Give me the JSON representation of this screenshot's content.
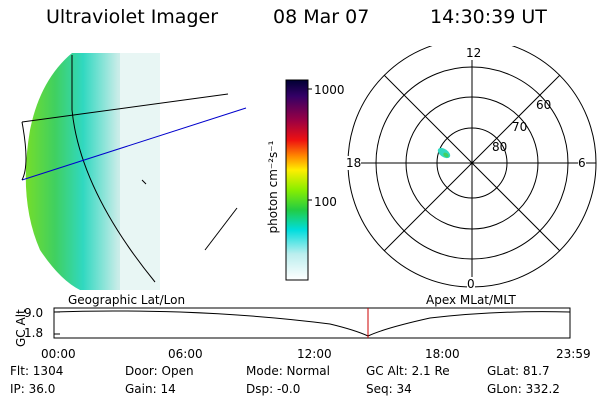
{
  "header": {
    "instrument": "Ultraviolet Imager",
    "date": "08 Mar 07",
    "time": "14:30:39 UT"
  },
  "colorbar": {
    "unit_label": "photon cm⁻²s⁻¹",
    "ticks": [
      "1000",
      "100"
    ]
  },
  "polar_plot": {
    "mlt_labels": {
      "top": "12",
      "right": "6",
      "bottom": "0",
      "left": "18"
    },
    "lat_labels": [
      "60",
      "70",
      "80"
    ]
  },
  "panel_labels": {
    "left": "Geographic Lat/Lon",
    "right": "Apex MLat/MLT"
  },
  "altitude_plot": {
    "ylabel": "GC Alt",
    "yticks": [
      "9.0",
      "1.8"
    ],
    "xticks": [
      "00:00",
      "06:00",
      "12:00",
      "18:00",
      "23:59"
    ]
  },
  "info": {
    "row1": {
      "flt": "Flt:  1304",
      "door": "Door: Open",
      "mode": "Mode: Normal",
      "gcalt": "GC Alt: 2.1 Re",
      "glat": "GLat:  81.7"
    },
    "row2": {
      "ip": "IP:  36.0",
      "gain": "Gain: 14",
      "dsp": "Dsp:   -0.0",
      "seq": "Seq: 34",
      "glon": "GLon: 332.2"
    }
  },
  "colors": {
    "marker_line": "#cc0000",
    "gc_line": "#0000cc"
  }
}
